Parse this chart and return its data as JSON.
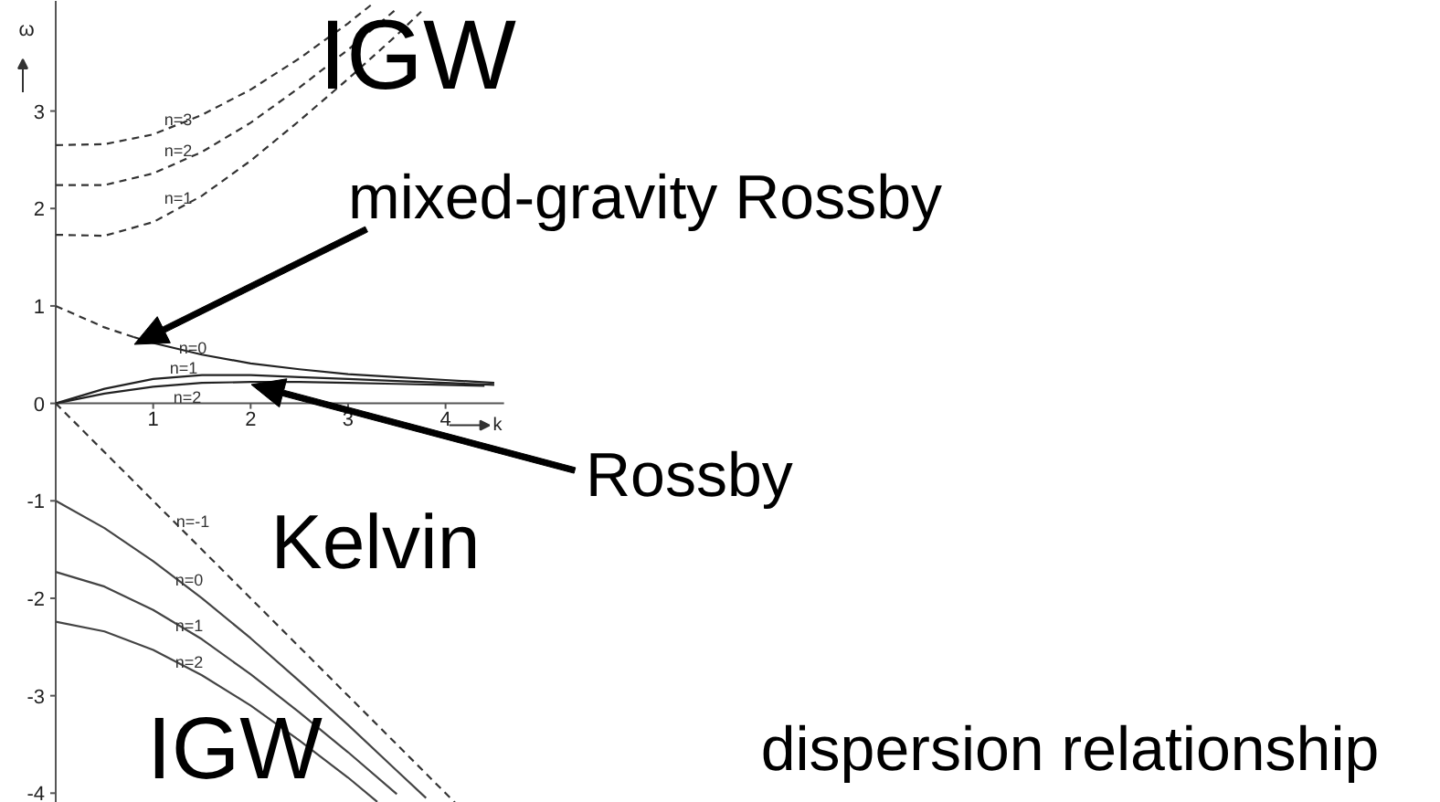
{
  "chart_data": {
    "type": "line",
    "xlabel": "k",
    "ylabel": "ω",
    "xlim": [
      0,
      4.6
    ],
    "ylim": [
      -4.1,
      4.13
    ],
    "xticks": [
      1,
      2,
      3,
      4
    ],
    "yticks": [
      -4,
      -3,
      -2,
      -1,
      0,
      1,
      2,
      3
    ],
    "series": [
      {
        "color": "#333333",
        "line_style": "dashed",
        "x": [
          0,
          0.5,
          1,
          1.5,
          2,
          2.5,
          3,
          3.5,
          3.75
        ],
        "values": [
          1.73,
          1.72,
          1.86,
          2.13,
          2.49,
          2.9,
          3.33,
          3.78,
          4.02
        ]
      },
      {
        "color": "#333333",
        "line_style": "dashed",
        "x": [
          0,
          0.5,
          1,
          1.5,
          2,
          2.5,
          3,
          3.5
        ],
        "values": [
          2.24,
          2.24,
          2.36,
          2.58,
          2.88,
          3.24,
          3.63,
          4.05
        ]
      },
      {
        "color": "#333333",
        "line_style": "dashed",
        "x": [
          0,
          0.5,
          1,
          1.5,
          2,
          2.5,
          3,
          3.25
        ],
        "values": [
          2.65,
          2.66,
          2.76,
          2.96,
          3.22,
          3.54,
          3.9,
          4.1
        ]
      },
      {
        "color": "#333333",
        "line_style": "dashed",
        "x": [
          0,
          0.5,
          0.8
        ],
        "values": [
          1,
          0.78,
          0.68
        ]
      },
      {
        "color": "#222222",
        "line_style": "solid",
        "x": [
          0.8,
          1,
          1.5,
          2,
          2.5,
          3,
          3.5,
          4,
          4.5
        ],
        "values": [
          0.68,
          0.62,
          0.5,
          0.41,
          0.35,
          0.3,
          0.27,
          0.24,
          0.21
        ]
      },
      {
        "color": "#222222",
        "line_style": "solid",
        "x": [
          0,
          0.5,
          1,
          1.5,
          2,
          2.5,
          3,
          3.5,
          4,
          4.5
        ],
        "values": [
          0,
          0.15,
          0.25,
          0.29,
          0.29,
          0.27,
          0.25,
          0.23,
          0.21,
          0.19
        ]
      },
      {
        "color": "#222222",
        "line_style": "solid",
        "x": [
          0,
          0.5,
          1,
          1.5,
          2,
          2.5,
          3,
          3.5,
          4,
          4.4
        ],
        "values": [
          0,
          0.1,
          0.17,
          0.21,
          0.22,
          0.22,
          0.21,
          0.2,
          0.19,
          0.18
        ]
      },
      {
        "color": "#333333",
        "line_style": "dashed",
        "x": [
          0,
          4.1
        ],
        "values": [
          0,
          -4.1
        ]
      },
      {
        "color": "#444444",
        "line_style": "solid",
        "x": [
          0,
          0.5,
          1,
          1.5,
          2,
          2.5,
          3,
          3.5,
          3.8
        ],
        "values": [
          -1,
          -1.28,
          -1.62,
          -2.0,
          -2.41,
          -2.85,
          -3.3,
          -3.77,
          -4.05
        ]
      },
      {
        "color": "#444444",
        "line_style": "solid",
        "x": [
          0,
          0.5,
          1,
          1.5,
          2,
          2.5,
          3,
          3.5
        ],
        "values": [
          -1.73,
          -1.88,
          -2.12,
          -2.42,
          -2.78,
          -3.17,
          -3.58,
          -4.01
        ]
      },
      {
        "color": "#444444",
        "line_style": "solid",
        "x": [
          0,
          0.5,
          1,
          1.5,
          2,
          2.5,
          3,
          3.3
        ],
        "values": [
          -2.24,
          -2.34,
          -2.53,
          -2.79,
          -3.1,
          -3.46,
          -3.84,
          -4.09
        ]
      }
    ],
    "annotations": [
      "IGW",
      "mixed-gravity Rossby",
      "Rossby",
      "Kelvin",
      "IGW",
      "dispersion relationship",
      "n=3",
      "n=2",
      "n=1",
      "n=0",
      "n=1",
      "n=2",
      "n=-1",
      "n=0",
      "n=1",
      "n=2"
    ]
  }
}
